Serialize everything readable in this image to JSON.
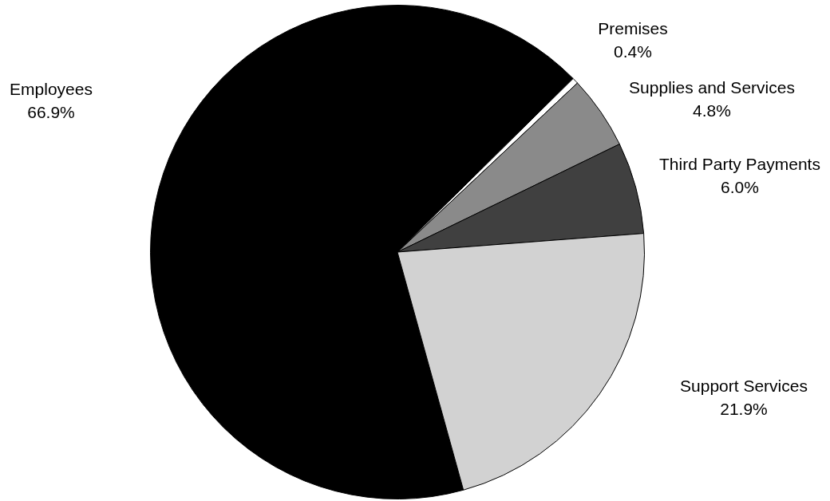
{
  "chart_data": {
    "type": "pie",
    "categories": [
      "Employees",
      "Premises",
      "Supplies and Services",
      "Third Party Payments",
      "Support Services"
    ],
    "values": [
      66.9,
      0.4,
      4.8,
      6.0,
      21.9
    ],
    "value_labels": [
      "66.9%",
      "0.4%",
      "4.8%",
      "6.0%",
      "21.9%"
    ],
    "colors": [
      "#000000",
      "#ffffff",
      "#8a8a8a",
      "#404040",
      "#d2d2d2"
    ],
    "legend": false
  }
}
